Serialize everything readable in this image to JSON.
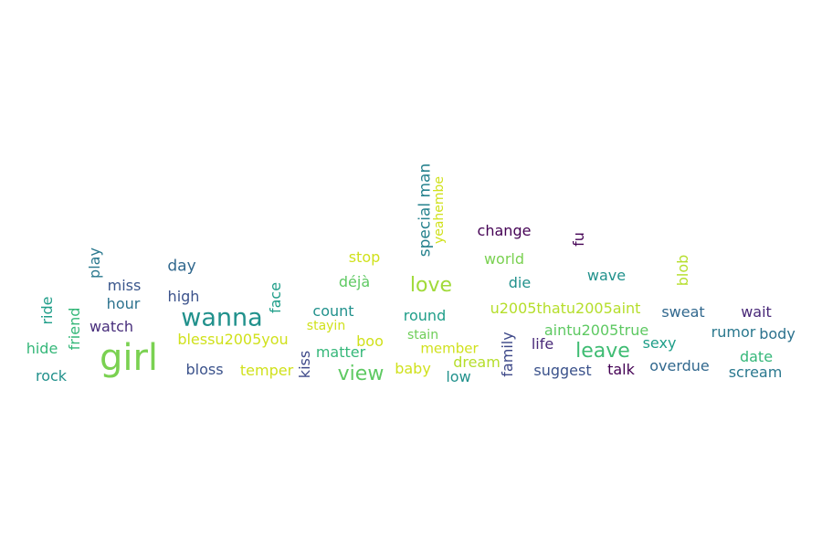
{
  "words": [
    {
      "text": "girl",
      "color": "#7ad151",
      "vertical": false
    },
    {
      "text": "wanna",
      "color": "#21918c",
      "vertical": false
    },
    {
      "text": "love",
      "color": "#a0da39",
      "vertical": false
    },
    {
      "text": "view",
      "color": "#5ec962",
      "vertical": false
    },
    {
      "text": "leave",
      "color": "#3fbc73",
      "vertical": false
    },
    {
      "text": "special man",
      "color": "#26828e",
      "vertical": true
    },
    {
      "text": "yeahembe",
      "color": "#d0e11c",
      "vertical": true
    },
    {
      "text": "change",
      "color": "#440154",
      "vertical": false
    },
    {
      "text": "fu",
      "color": "#440154",
      "vertical": true
    },
    {
      "text": "play",
      "color": "#2a788e",
      "vertical": true
    },
    {
      "text": "day",
      "color": "#31688e",
      "vertical": false
    },
    {
      "text": "stop",
      "color": "#d0e11c",
      "vertical": false
    },
    {
      "text": "world",
      "color": "#7ad151",
      "vertical": false
    },
    {
      "text": "wave",
      "color": "#21918c",
      "vertical": false
    },
    {
      "text": "blob",
      "color": "#b5de2b",
      "vertical": true
    },
    {
      "text": "ride",
      "color": "#1f9e89",
      "vertical": true
    },
    {
      "text": "miss",
      "color": "#39568c",
      "vertical": false
    },
    {
      "text": "face",
      "color": "#1f9e89",
      "vertical": true
    },
    {
      "text": "déjà",
      "color": "#5ec962",
      "vertical": false
    },
    {
      "text": "die",
      "color": "#21918c",
      "vertical": false
    },
    {
      "text": "friend",
      "color": "#35b779",
      "vertical": true
    },
    {
      "text": "hour",
      "color": "#2c728e",
      "vertical": false
    },
    {
      "text": "high",
      "color": "#3b528b",
      "vertical": false
    },
    {
      "text": "count",
      "color": "#21918c",
      "vertical": false
    },
    {
      "text": "round",
      "color": "#1f9e89",
      "vertical": false
    },
    {
      "text": "u2005thatu2005aint",
      "color": "#b5de2b",
      "vertical": false
    },
    {
      "text": "sweat",
      "color": "#31688e",
      "vertical": false
    },
    {
      "text": "wait",
      "color": "#482878",
      "vertical": false
    },
    {
      "text": "watch",
      "color": "#472d7b",
      "vertical": false
    },
    {
      "text": "stayin",
      "color": "#d0e11c",
      "vertical": false
    },
    {
      "text": "family",
      "color": "#3e4989",
      "vertical": true
    },
    {
      "text": "aintu2005true",
      "color": "#5ec962",
      "vertical": false
    },
    {
      "text": "rumor",
      "color": "#2a788e",
      "vertical": false
    },
    {
      "text": "body",
      "color": "#2c728e",
      "vertical": false
    },
    {
      "text": "blessu2005you",
      "color": "#d0e11c",
      "vertical": false
    },
    {
      "text": "stain",
      "color": "#6ece58",
      "vertical": false
    },
    {
      "text": "boo",
      "color": "#d0e11c",
      "vertical": false
    },
    {
      "text": "life",
      "color": "#482878",
      "vertical": false
    },
    {
      "text": "sexy",
      "color": "#1f9e89",
      "vertical": false
    },
    {
      "text": "hide",
      "color": "#35b779",
      "vertical": false
    },
    {
      "text": "matter",
      "color": "#35b779",
      "vertical": false
    },
    {
      "text": "member",
      "color": "#d0e11c",
      "vertical": false
    },
    {
      "text": "kiss",
      "color": "#3e4989",
      "vertical": true
    },
    {
      "text": "date",
      "color": "#35b779",
      "vertical": false
    },
    {
      "text": "dream",
      "color": "#b5de2b",
      "vertical": false
    },
    {
      "text": "overdue",
      "color": "#31688e",
      "vertical": false
    },
    {
      "text": "bloss",
      "color": "#3b528b",
      "vertical": false
    },
    {
      "text": "temper",
      "color": "#d0e11c",
      "vertical": false
    },
    {
      "text": "baby",
      "color": "#d0e11c",
      "vertical": false
    },
    {
      "text": "suggest",
      "color": "#3b528b",
      "vertical": false
    },
    {
      "text": "talk",
      "color": "#440154",
      "vertical": false
    },
    {
      "text": "scream",
      "color": "#2a788e",
      "vertical": false
    },
    {
      "text": "rock",
      "color": "#21918c",
      "vertical": false
    },
    {
      "text": "low",
      "color": "#21918c",
      "vertical": false
    }
  ]
}
